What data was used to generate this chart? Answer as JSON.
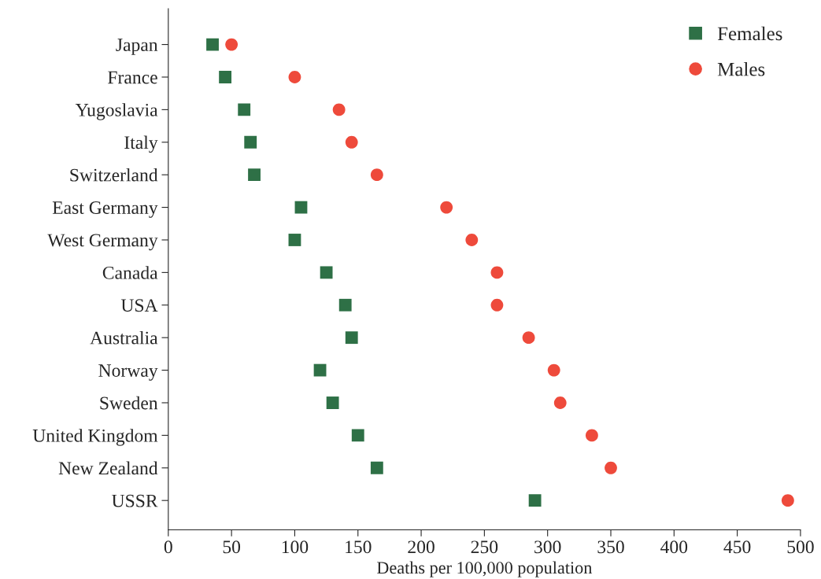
{
  "chart_data": {
    "type": "scatter",
    "xlabel": "Deaths per 100,000 population",
    "categories": [
      "Japan",
      "France",
      "Yugoslavia",
      "Italy",
      "Switzerland",
      "East Germany",
      "West Germany",
      "Canada",
      "USA",
      "Australia",
      "Norway",
      "Sweden",
      "United Kingdom",
      "New Zealand",
      "USSR"
    ],
    "orientation": "horizontal",
    "series": [
      {
        "name": "Females",
        "color": "#2e7046",
        "marker": "square",
        "values": [
          35,
          45,
          60,
          65,
          68,
          105,
          100,
          125,
          140,
          145,
          120,
          130,
          150,
          165,
          290
        ]
      },
      {
        "name": "Males",
        "color": "#ee4a3b",
        "marker": "circle",
        "values": [
          50,
          100,
          135,
          145,
          165,
          220,
          240,
          260,
          260,
          285,
          305,
          310,
          335,
          350,
          490
        ]
      }
    ],
    "xlim": [
      0,
      500
    ],
    "xticks": [
      0,
      50,
      100,
      150,
      200,
      250,
      300,
      350,
      400,
      450,
      500
    ],
    "grid": false,
    "legend": "top right"
  }
}
